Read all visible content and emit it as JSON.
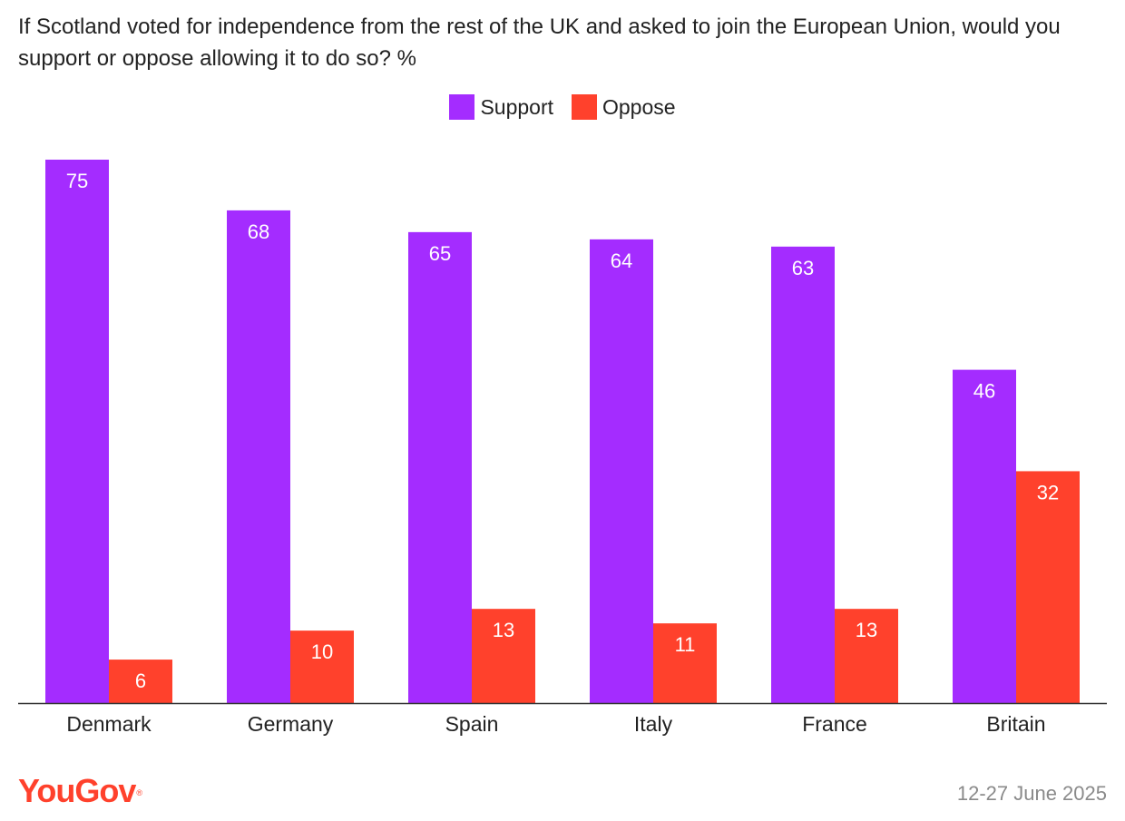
{
  "chart_data": {
    "type": "bar",
    "title": "If Scotland voted for independence from the rest of the UK and asked to join the European Union, would you support or oppose allowing it to do so? %",
    "categories": [
      "Denmark",
      "Germany",
      "Spain",
      "Italy",
      "France",
      "Britain"
    ],
    "series": [
      {
        "name": "Support",
        "color": "#a42cff",
        "values": [
          75,
          68,
          65,
          64,
          63,
          46
        ]
      },
      {
        "name": "Oppose",
        "color": "#ff412c",
        "values": [
          6,
          10,
          13,
          11,
          13,
          32
        ]
      }
    ],
    "xlabel": "",
    "ylabel": "",
    "ylim": [
      0,
      75
    ],
    "grid": false,
    "legend_position": "top-center"
  },
  "footer": {
    "brand": "YouGov",
    "brand_mark": "®",
    "date": "12-27 June 2025"
  }
}
